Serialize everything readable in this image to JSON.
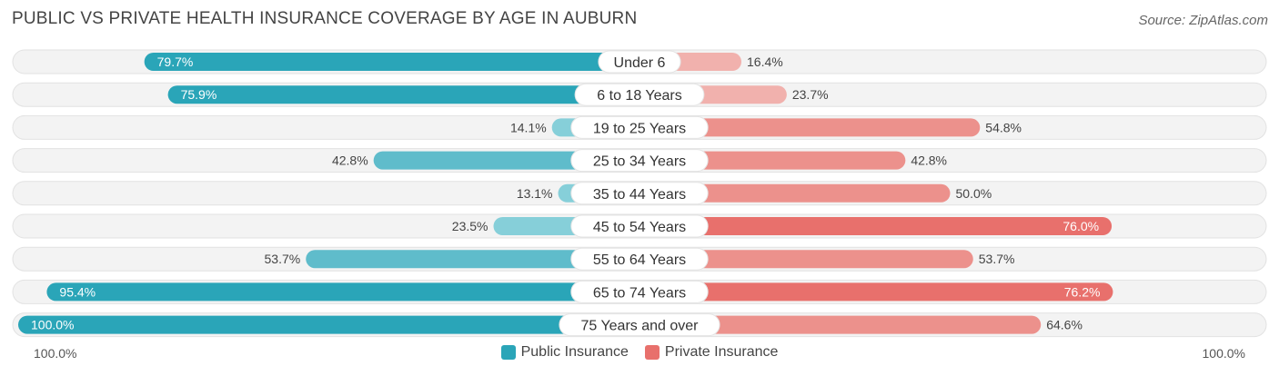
{
  "title": "PUBLIC VS PRIVATE HEALTH INSURANCE COVERAGE BY AGE IN AUBURN",
  "source": "Source: ZipAtlas.com",
  "axis": {
    "left_label": "100.0%",
    "right_label": "100.0%"
  },
  "legend": [
    {
      "label": "Public Insurance",
      "color": "#2aa5b8"
    },
    {
      "label": "Private Insurance",
      "color": "#e8706c"
    }
  ],
  "chart_data": {
    "type": "bar",
    "orientation": "horizontal-diverging",
    "categories": [
      "Under 6",
      "6 to 18 Years",
      "19 to 25 Years",
      "25 to 34 Years",
      "35 to 44 Years",
      "45 to 54 Years",
      "55 to 64 Years",
      "65 to 74 Years",
      "75 Years and over"
    ],
    "series": [
      {
        "name": "Public Insurance",
        "values": [
          79.7,
          75.9,
          14.1,
          42.8,
          13.1,
          23.5,
          53.7,
          95.4,
          100.0
        ],
        "labels": [
          "79.7%",
          "75.9%",
          "14.1%",
          "42.8%",
          "13.1%",
          "23.5%",
          "53.7%",
          "95.4%",
          "100.0%"
        ]
      },
      {
        "name": "Private Insurance",
        "values": [
          16.4,
          23.7,
          54.8,
          42.8,
          50.0,
          76.0,
          53.7,
          76.2,
          64.6
        ],
        "labels": [
          "16.4%",
          "23.7%",
          "54.8%",
          "42.8%",
          "50.0%",
          "76.0%",
          "53.7%",
          "76.2%",
          "64.6%"
        ]
      }
    ],
    "xlim": [
      -100,
      100
    ]
  }
}
